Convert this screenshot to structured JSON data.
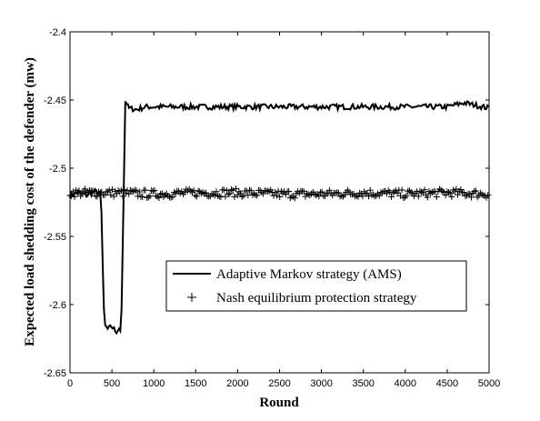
{
  "chart_data": {
    "type": "line",
    "title": "",
    "xlabel": "Round",
    "ylabel": "Expected load shedding cost of the defender (mw)",
    "xlim": [
      0,
      5000
    ],
    "ylim": [
      -2.65,
      -2.4
    ],
    "x_ticks": [
      "0",
      "500",
      "1000",
      "1500",
      "2000",
      "2500",
      "3000",
      "3500",
      "4000",
      "4500",
      "5000"
    ],
    "y_ticks": [
      "-2.4",
      "-2.45",
      "-2.5",
      "-2.55",
      "-2.6",
      "-2.65"
    ],
    "grid": false,
    "legend_position": "lower-right",
    "series": [
      {
        "name": "Adaptive Markov strategy (AMS)",
        "style": "solid-line",
        "color": "#000000",
        "x": [
          0,
          100,
          200,
          300,
          370,
          390,
          410,
          450,
          500,
          550,
          590,
          610,
          640,
          660,
          700,
          800,
          900,
          1000,
          1200,
          1500,
          2000,
          2500,
          3000,
          3500,
          4000,
          4500,
          4700,
          5000
        ],
        "y": [
          -2.52,
          -2.518,
          -2.52,
          -2.517,
          -2.519,
          -2.57,
          -2.615,
          -2.618,
          -2.616,
          -2.62,
          -2.617,
          -2.62,
          -2.52,
          -2.451,
          -2.456,
          -2.457,
          -2.455,
          -2.455,
          -2.455,
          -2.455,
          -2.455,
          -2.455,
          -2.455,
          -2.455,
          -2.455,
          -2.455,
          -2.452,
          -2.456
        ]
      },
      {
        "name": "Nash equilibrium protection strategy",
        "style": "plus-markers",
        "color": "#000000",
        "x": [
          0,
          500,
          1000,
          1500,
          2000,
          2500,
          3000,
          3500,
          4000,
          4500,
          5000
        ],
        "y": [
          -2.518,
          -2.518,
          -2.519,
          -2.518,
          -2.518,
          -2.519,
          -2.519,
          -2.518,
          -2.519,
          -2.518,
          -2.519
        ]
      }
    ]
  }
}
